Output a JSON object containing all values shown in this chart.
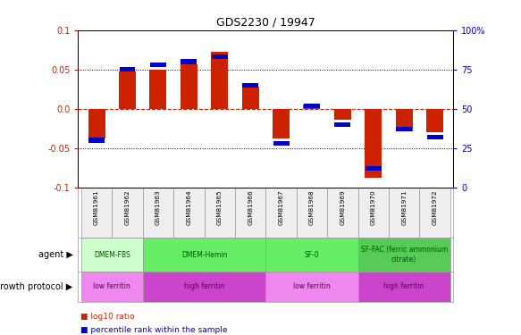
{
  "title": "GDS2230 / 19947",
  "samples": [
    "GSM81961",
    "GSM81962",
    "GSM81963",
    "GSM81964",
    "GSM81965",
    "GSM81966",
    "GSM81967",
    "GSM81968",
    "GSM81969",
    "GSM81970",
    "GSM81971",
    "GSM81972"
  ],
  "log10_ratio": [
    -0.038,
    0.048,
    0.05,
    0.057,
    0.073,
    0.028,
    -0.038,
    0.005,
    -0.014,
    -0.088,
    -0.028,
    -0.03
  ],
  "percentile_rank": [
    30,
    75,
    78,
    80,
    83,
    65,
    28,
    52,
    40,
    12,
    37,
    32
  ],
  "ylim": [
    -0.1,
    0.1
  ],
  "yticks_left": [
    -0.1,
    -0.05,
    0.0,
    0.05,
    0.1
  ],
  "yticks_right": [
    0,
    25,
    50,
    75,
    100
  ],
  "bar_color": "#cc2200",
  "marker_color": "#0000cc",
  "dotted_color": "#000000",
  "agent_groups": [
    {
      "label": "DMEM-FBS",
      "start": 0,
      "end": 2,
      "color": "#ccffcc"
    },
    {
      "label": "DMEM-Hemin",
      "start": 2,
      "end": 6,
      "color": "#66ee66"
    },
    {
      "label": "SF-0",
      "start": 6,
      "end": 9,
      "color": "#66ee66"
    },
    {
      "label": "SF-FAC (ferric ammonium\ncitrate)",
      "start": 9,
      "end": 12,
      "color": "#55cc55"
    }
  ],
  "growth_groups": [
    {
      "label": "low ferritin",
      "start": 0,
      "end": 2,
      "color": "#ee88ee"
    },
    {
      "label": "high ferritin",
      "start": 2,
      "end": 6,
      "color": "#cc44cc"
    },
    {
      "label": "low ferritin",
      "start": 6,
      "end": 9,
      "color": "#ee88ee"
    },
    {
      "label": "high ferritin",
      "start": 9,
      "end": 12,
      "color": "#cc44cc"
    }
  ],
  "legend_red": "log10 ratio",
  "legend_blue": "percentile rank within the sample",
  "agent_label": "agent",
  "growth_label": "growth protocol"
}
